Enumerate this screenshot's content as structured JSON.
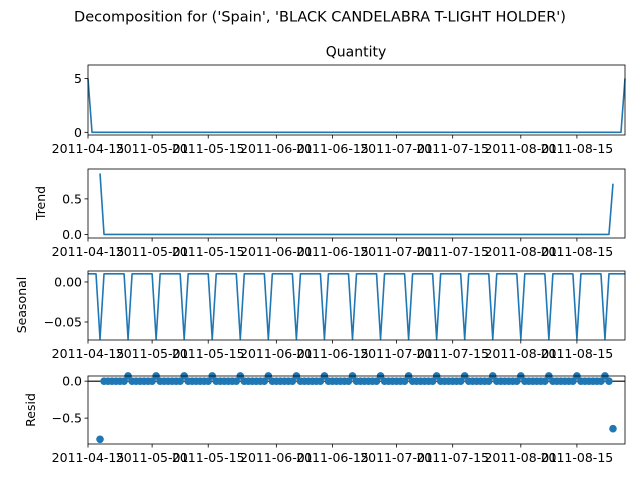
{
  "figure": {
    "title": "Decomposition for ('Spain', 'BLACK CANDELABRA T-LIGHT HOLDER')"
  },
  "chart_data": {
    "type": "line",
    "series_color": "#1f77b4",
    "x_start": "2011-04-15",
    "x_end": "2011-08-27",
    "x_ticks": [
      "2011-04-15",
      "2011-05-01",
      "2011-05-15",
      "2011-06-01",
      "2011-06-15",
      "2011-07-01",
      "2011-07-15",
      "2011-08-01",
      "2011-08-15"
    ],
    "x_tick_labels": [
      "2011-04-15",
      "2011-05-01",
      "2011-05-15",
      "2011-06-01",
      "2011-06-15",
      "2011-07-01",
      "2011-07-15",
      "2011-08-01",
      "2011-08-15"
    ],
    "panels": [
      {
        "id": "quantity",
        "kind": "line",
        "title": "Quantity",
        "ylabel": "",
        "ylim": [
          -0.25,
          6.25
        ],
        "y_ticks": [
          0,
          5
        ],
        "y_tick_labels": [
          "0",
          "5"
        ],
        "points": [
          [
            "2011-04-15",
            5
          ],
          [
            "2011-04-16",
            0
          ],
          [
            "2011-08-26",
            0
          ],
          [
            "2011-08-27",
            5
          ]
        ]
      },
      {
        "id": "trend",
        "kind": "line",
        "title": "",
        "ylabel": "Trend",
        "ylim": [
          -0.05,
          0.92
        ],
        "y_ticks": [
          0,
          0.5
        ],
        "y_tick_labels": [
          "0.0",
          "0.5"
        ],
        "points": [
          [
            "2011-04-18",
            0.857
          ],
          [
            "2011-04-19",
            0.0
          ],
          [
            "2011-08-23",
            0.0
          ],
          [
            "2011-08-24",
            0.714
          ]
        ]
      },
      {
        "id": "seasonal",
        "kind": "seasonal",
        "title": "",
        "ylabel": "Seasonal",
        "ylim": [
          -0.0725,
          0.0137
        ],
        "y_ticks": [
          0,
          -0.05
        ],
        "y_tick_labels": [
          "0.00",
          "−0.05"
        ],
        "high": 0.0102,
        "low": -0.0714,
        "first_low": "2011-04-18",
        "period_days": 7
      },
      {
        "id": "resid",
        "kind": "scatter",
        "title": "",
        "ylabel": "Resid",
        "ylim": [
          -0.85,
          0.07
        ],
        "y_ticks": [
          0,
          -0.5
        ],
        "y_tick_labels": [
          "0.0",
          "−0.5"
        ],
        "start": "2011-04-19",
        "end": "2011-08-23",
        "small_value": 0.0,
        "large_value": 0.0714,
        "large_first": "2011-04-25",
        "outliers": [
          [
            "2011-04-18",
            -0.786
          ],
          [
            "2011-08-24",
            -0.643
          ]
        ]
      }
    ]
  }
}
